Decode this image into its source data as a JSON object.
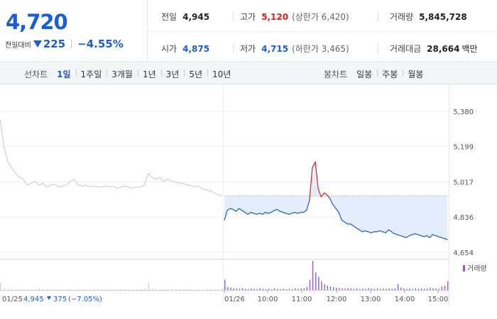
{
  "header": {
    "price": "4,720",
    "diff_label": "전일대비",
    "diff_value": "225",
    "diff_percent": "−4.55%",
    "stats": {
      "prev_close": {
        "label": "전일",
        "value": "4,945"
      },
      "high": {
        "label": "고가",
        "value": "5,120",
        "sub": "(상한가 6,420)"
      },
      "volume": {
        "label": "거래량",
        "value": "5,845,728"
      },
      "open": {
        "label": "시가",
        "value": "4,875"
      },
      "low": {
        "label": "저가",
        "value": "4,715",
        "sub": "(하한가 3,465)"
      },
      "trade_value": {
        "label": "거래대금",
        "value": "28,664",
        "unit": "백만"
      }
    }
  },
  "toolbar": {
    "line_chart_label": "선차트",
    "line_periods": [
      "1일",
      "1주일",
      "3개월",
      "1년",
      "3년",
      "5년",
      "10년"
    ],
    "line_active": "1일",
    "candle_chart_label": "봉차트",
    "candle_periods": [
      "일봉",
      "주봉",
      "월봉"
    ]
  },
  "colors": {
    "accent_blue": "#1a5dd6",
    "up_red": "#e0201d",
    "prev_day_gray": "#c8c8c8",
    "fill_blue": "#e3edfb",
    "volume_purple": "#8a5fbf"
  },
  "chart_data": {
    "type": "line",
    "y_ticks": [
      "5,380",
      "5,199",
      "5,017",
      "4,836",
      "4,654"
    ],
    "ylim": [
      4654,
      5380
    ],
    "prev_close_level": 4945,
    "volume_legend": "거래량",
    "x_ticks": [
      "01/26",
      "10:00",
      "11:00",
      "12:00",
      "13:00",
      "14:00",
      "15:00"
    ],
    "prev_day": {
      "date": "01/25",
      "close": "4,945",
      "change": "375",
      "change_pct": "(−7.05%)",
      "values": [
        5340,
        5200,
        5120,
        5090,
        5060,
        5040,
        5030,
        5000,
        5010,
        5020,
        5000,
        5010,
        4990,
        5000,
        5005,
        4990,
        4995,
        5000,
        5020,
        5030,
        5000,
        4995,
        5000,
        4990,
        4995,
        4990,
        4990,
        4995,
        4990,
        4995,
        4985,
        4990,
        4995,
        4990,
        4985,
        4990,
        4990,
        5000,
        5060,
        5040,
        5030,
        5040,
        5020,
        5030,
        5020,
        5015,
        5010,
        5010,
        5000,
        5000,
        4990,
        4995,
        4980,
        4975,
        4970,
        4960,
        4950,
        4945
      ]
    },
    "today": {
      "values": [
        4820,
        4870,
        4880,
        4875,
        4865,
        4880,
        4870,
        4860,
        4850,
        4860,
        4855,
        4850,
        4855,
        4850,
        4860,
        4855,
        4860,
        4870,
        4875,
        4865,
        4860,
        4855,
        4850,
        4855,
        4860,
        4855,
        4860,
        4860,
        4870,
        4920,
        5090,
        5120,
        4980,
        4940,
        4960,
        4950,
        4930,
        4900,
        4880,
        4860,
        4820,
        4810,
        4800,
        4800,
        4790,
        4780,
        4770,
        4760,
        4765,
        4760,
        4755,
        4760,
        4760,
        4765,
        4760,
        4755,
        4770,
        4760,
        4750,
        4745,
        4740,
        4735,
        4730,
        4740,
        4745,
        4750,
        4745,
        4740,
        4735,
        4740,
        4730,
        4745,
        4740,
        4735,
        4730,
        4725,
        4720
      ],
      "above_prev_close_color": "#e0201d"
    },
    "volume": {
      "prev_day": [
        0.25,
        0.08,
        0.05,
        0.04,
        0.03,
        0.03,
        0.04,
        0.03,
        0.02,
        0.03,
        0.05,
        0.03,
        0.04,
        0.03,
        0.02,
        0.03,
        0.03,
        0.04,
        0.03,
        0.02,
        0.03,
        0.02,
        0.03,
        0.03,
        0.04,
        0.02,
        0.03,
        0.02,
        0.03,
        0.03,
        0.02,
        0.03,
        0.02,
        0.03,
        0.02,
        0.03,
        0.03,
        0.05,
        0.25,
        0.06,
        0.04,
        0.03,
        0.03,
        0.03,
        0.02,
        0.03,
        0.02,
        0.03,
        0.02,
        0.03,
        0.03,
        0.02,
        0.03,
        0.04,
        0.03,
        0.02,
        0.03,
        0.05
      ],
      "today": [
        0.35,
        0.1,
        0.08,
        0.06,
        0.05,
        0.04,
        0.06,
        0.04,
        0.03,
        0.05,
        0.04,
        0.03,
        0.05,
        0.04,
        0.03,
        0.04,
        0.03,
        0.05,
        0.04,
        0.03,
        0.04,
        0.03,
        0.04,
        0.03,
        0.05,
        0.04,
        0.05,
        0.06,
        0.1,
        0.35,
        1.0,
        0.6,
        0.45,
        0.3,
        0.2,
        0.15,
        0.12,
        0.1,
        0.08,
        0.07,
        0.06,
        0.05,
        0.06,
        0.05,
        0.04,
        0.05,
        0.04,
        0.05,
        0.04,
        0.06,
        0.05,
        0.04,
        0.05,
        0.04,
        0.05,
        0.04,
        0.05,
        0.04,
        0.05,
        0.2,
        0.08,
        0.05,
        0.04,
        0.05,
        0.04,
        0.05,
        0.04,
        0.05,
        0.04,
        0.05,
        0.08,
        0.06,
        0.05,
        0.04,
        0.12,
        0.15,
        0.3
      ]
    }
  }
}
